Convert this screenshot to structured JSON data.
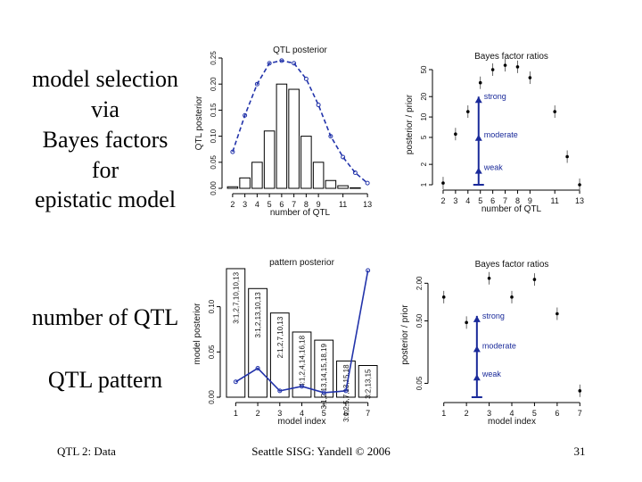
{
  "slide": {
    "heading": [
      "model selection",
      "via",
      "Bayes factors",
      "for",
      "epistatic model"
    ],
    "label_count": "number of QTL",
    "label_pattern": "QTL pattern",
    "footer_left": "QTL 2: Data",
    "footer_center": "Seattle SISG: Yandell © 2006",
    "page": "31"
  },
  "chart_data": [
    {
      "type": "bar",
      "title": "QTL posterior",
      "x_label": "number of QTL",
      "y_label": "QTL posterior",
      "x": [
        2,
        3,
        4,
        5,
        6,
        7,
        8,
        9,
        10,
        11,
        12,
        13
      ],
      "values": [
        0.003,
        0.02,
        0.05,
        0.11,
        0.2,
        0.19,
        0.1,
        0.05,
        0.015,
        0.005,
        0.001,
        0
      ],
      "line": [
        0.07,
        0.14,
        0.2,
        0.24,
        0.245,
        0.24,
        0.21,
        0.16,
        0.1,
        0.06,
        0.03,
        0.01
      ],
      "xlim": [
        1.5,
        13.5
      ],
      "xticks": [
        2,
        3,
        4,
        5,
        6,
        7,
        8,
        9,
        11,
        13
      ],
      "ylim": [
        0,
        0.25
      ],
      "yticks": [
        {
          "value": 0,
          "label": "0.00"
        },
        {
          "value": 0.05,
          "label": "0.05"
        },
        {
          "value": 0.1,
          "label": "0.10"
        },
        {
          "value": 0.15,
          "label": "0.15"
        },
        {
          "value": 0.2,
          "label": "0.20"
        },
        {
          "value": 0.25,
          "label": "0.25"
        }
      ],
      "color": "#ffffff",
      "line_color": "#2233aa"
    },
    {
      "type": "scatter",
      "title": "Bayes factor ratios",
      "x_label": "number of QTL",
      "y_label": "posterior / prior",
      "x": [
        2,
        3,
        4,
        5,
        6,
        7,
        8,
        9,
        11,
        12,
        13
      ],
      "values": [
        1.06,
        5.6,
        12,
        32,
        50,
        58,
        55,
        38,
        12,
        2.6,
        1
      ],
      "xlim": [
        1.5,
        13.5
      ],
      "xticks": [
        2,
        3,
        4,
        5,
        6,
        7,
        8,
        9,
        11,
        13
      ],
      "ylim": [
        1,
        60
      ],
      "yticks": [
        1,
        2,
        5,
        10,
        20,
        50
      ],
      "log_y": true,
      "annotations": [
        {
          "text": "strong",
          "y": 20
        },
        {
          "text": "moderate",
          "y": 5.5
        },
        {
          "text": "weak",
          "y": 1.8
        }
      ],
      "color": "#000000",
      "arrow_color": "#1a2a9a"
    },
    {
      "type": "bar",
      "title": "pattern posterior",
      "x_label": "model index",
      "y_label": "model posterior",
      "x": [
        1,
        2,
        3,
        4,
        5,
        6,
        7
      ],
      "values": [
        0.142,
        0.12,
        0.093,
        0.072,
        0.063,
        0.04,
        0.035
      ],
      "bar_labels": [
        "3:1,2,7,10,10,13",
        "3:1,2,13,10,13",
        "2:1,2,7,10,13",
        "4:1,2,4,14,16,18",
        "3:1,2,13,14,15,18,19",
        "3:1,2,5,7,13,15,18",
        "3:2,13,15"
      ],
      "line": [
        0.017,
        0.032,
        0.007,
        0.012,
        0.005,
        0.007,
        0.14
      ],
      "xlim": [
        0.5,
        7.5
      ],
      "xticks": [
        1,
        2,
        3,
        4,
        5,
        6,
        7
      ],
      "ylim": [
        0,
        0.14
      ],
      "yticks": [
        {
          "value": 0,
          "label": "0.00"
        },
        {
          "value": 0.05,
          "label": "0.05"
        },
        {
          "value": 0.1,
          "label": "0.10"
        }
      ],
      "color": "#ffffff",
      "line_color": "#2233aa"
    },
    {
      "type": "scatter",
      "title": "Bayes factor ratios",
      "x_label": "model index",
      "y_label": "posterior / prior",
      "x": [
        1,
        2,
        3,
        4,
        5,
        6,
        7
      ],
      "values": [
        1.2,
        0.47,
        2.4,
        1.2,
        2.3,
        0.65,
        0.038
      ],
      "xlim": [
        0.5,
        7.5
      ],
      "xticks": [
        1,
        2,
        3,
        4,
        5,
        6,
        7
      ],
      "ylim": [
        0.03,
        3
      ],
      "log_y": true,
      "yticks": [
        {
          "value": 0.05,
          "label": "0.05"
        },
        {
          "value": 0.5,
          "label": "0.50"
        },
        {
          "value": 2,
          "label": "2.00"
        }
      ],
      "annotations": [
        {
          "text": "strong",
          "y": 0.6
        },
        {
          "text": "moderate",
          "y": 0.2
        },
        {
          "text": "weak",
          "y": 0.07
        }
      ],
      "color": "#000000",
      "arrow_color": "#1a2a9a"
    }
  ]
}
